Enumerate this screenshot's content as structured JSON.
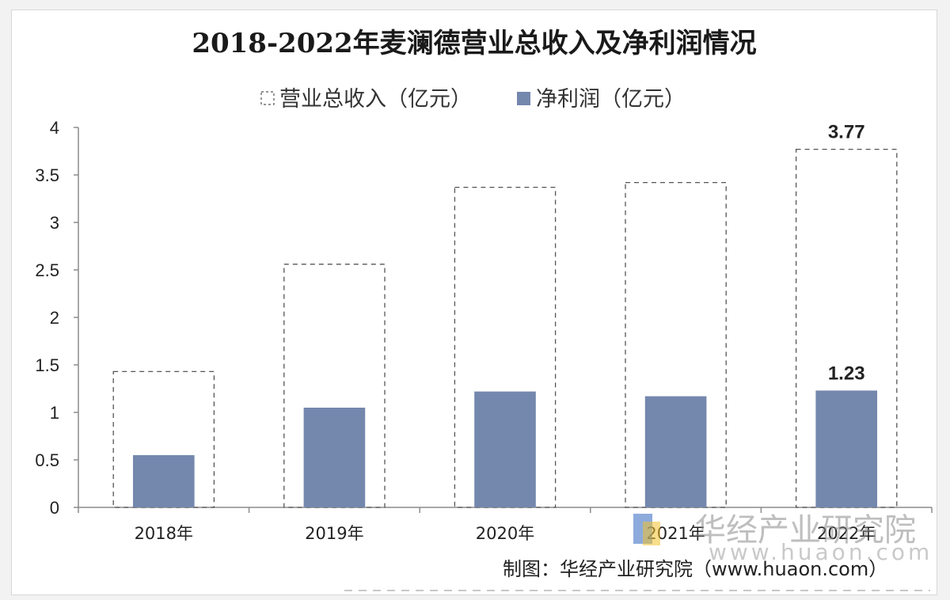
{
  "chart_data": {
    "type": "bar",
    "title": "2018-2022年麦澜德营业总收入及净利润情况",
    "categories": [
      "2018年",
      "2019年",
      "2020年",
      "2021年",
      "2022年"
    ],
    "series": [
      {
        "name": "营业总收入（亿元）",
        "style": "dashed-outline",
        "values": [
          1.43,
          2.56,
          3.37,
          3.42,
          3.77
        ]
      },
      {
        "name": "净利润（亿元）",
        "style": "filled",
        "values": [
          0.55,
          1.05,
          1.22,
          1.17,
          1.23
        ]
      }
    ],
    "data_labels": [
      {
        "series": 0,
        "index": 4,
        "text": "3.77"
      },
      {
        "series": 1,
        "index": 4,
        "text": "1.23"
      }
    ],
    "y_ticks": [
      "0",
      "0.5",
      "1",
      "1.5",
      "2",
      "2.5",
      "3",
      "3.5",
      "4"
    ],
    "ylim": [
      0,
      4
    ],
    "xlabel": "",
    "ylabel": "",
    "grid": false,
    "legend_position": "top",
    "source": "制图：华经产业研究院（www.huaon.com）",
    "watermark": {
      "name": "华经产业研究院",
      "url": "www.huaon.com"
    }
  },
  "colors": {
    "bar_fill": "#7487ad",
    "bar_outline": "#555555",
    "axis": "#8c8c8c",
    "watermark_blue": "#3f73c4",
    "watermark_yellow": "#f3c12d"
  }
}
